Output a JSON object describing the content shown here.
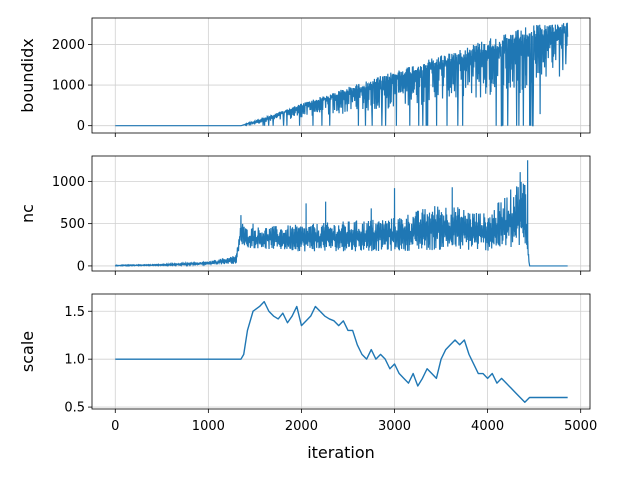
{
  "chart_data": [
    {
      "type": "line",
      "ylabel": "boundidx",
      "xlabel": "",
      "xlim": [
        -250,
        5100
      ],
      "ylim": [
        -180,
        2650
      ],
      "yticks": [
        0,
        1000,
        2000
      ],
      "ytick_labels": [
        "0",
        "1000",
        "2000"
      ],
      "grid": true,
      "series": [
        {
          "color": "#1f77b4",
          "description_points": {
            "x": [
              0,
              1350,
              1600,
              2000,
              2500,
              3000,
              3500,
              4000,
              4500,
              4860
            ],
            "y_upper": [
              0,
              0,
              200,
              550,
              950,
              1350,
              1750,
              2150,
              2500,
              2550
            ],
            "y_lower": [
              0,
              0,
              0,
              0,
              0,
              0,
              0,
              0,
              0,
              1600
            ]
          }
        }
      ]
    },
    {
      "type": "line",
      "ylabel": "nc",
      "xlabel": "",
      "xlim": [
        -250,
        5100
      ],
      "ylim": [
        -60,
        1300
      ],
      "yticks": [
        0,
        500,
        1000
      ],
      "ytick_labels": [
        "0",
        "500",
        "1000"
      ],
      "grid": true,
      "series": [
        {
          "color": "#1f77b4",
          "description_points": {
            "x": [
              0,
              500,
              1000,
              1300,
              1350,
              1400,
              2000,
              2500,
              3000,
              3500,
              4000,
              4400,
              4450,
              4860
            ],
            "y_upper": [
              10,
              20,
              60,
              150,
              600,
              500,
              550,
              600,
              650,
              850,
              700,
              1250,
              0,
              0
            ],
            "y_lower": [
              0,
              5,
              10,
              20,
              250,
              200,
              150,
              150,
              150,
              150,
              150,
              150,
              0,
              0
            ]
          },
          "spikes": [
            {
              "x": 1350,
              "y": 600
            },
            {
              "x": 1480,
              "y": 500
            },
            {
              "x": 2050,
              "y": 740
            },
            {
              "x": 2260,
              "y": 760
            },
            {
              "x": 2750,
              "y": 680
            },
            {
              "x": 3000,
              "y": 920
            },
            {
              "x": 3620,
              "y": 930
            },
            {
              "x": 4350,
              "y": 1110
            },
            {
              "x": 4430,
              "y": 1250
            }
          ]
        }
      ]
    },
    {
      "type": "line",
      "ylabel": "scale",
      "xlabel": "iteration",
      "xlim": [
        -250,
        5100
      ],
      "ylim": [
        0.48,
        1.68
      ],
      "yticks": [
        0.5,
        1.0,
        1.5
      ],
      "ytick_labels": [
        "0.5",
        "1.0",
        "1.5"
      ],
      "xticks": [
        0,
        1000,
        2000,
        3000,
        4000,
        5000
      ],
      "xtick_labels": [
        "0",
        "1000",
        "2000",
        "3000",
        "4000",
        "5000"
      ],
      "grid": true,
      "series": [
        {
          "color": "#1f77b4",
          "x": [
            0,
            1000,
            1350,
            1380,
            1420,
            1480,
            1550,
            1600,
            1650,
            1700,
            1750,
            1800,
            1850,
            1900,
            1950,
            2000,
            2050,
            2100,
            2150,
            2200,
            2250,
            2300,
            2350,
            2400,
            2450,
            2500,
            2550,
            2600,
            2650,
            2700,
            2750,
            2800,
            2850,
            2900,
            2950,
            3000,
            3050,
            3100,
            3150,
            3200,
            3250,
            3300,
            3350,
            3400,
            3450,
            3500,
            3550,
            3600,
            3650,
            3700,
            3750,
            3800,
            3850,
            3900,
            3950,
            4000,
            4050,
            4100,
            4150,
            4200,
            4250,
            4300,
            4350,
            4400,
            4450,
            4500,
            4860
          ],
          "y": [
            1.0,
            1.0,
            1.0,
            1.05,
            1.3,
            1.5,
            1.55,
            1.6,
            1.5,
            1.45,
            1.42,
            1.48,
            1.38,
            1.45,
            1.55,
            1.35,
            1.4,
            1.45,
            1.55,
            1.5,
            1.45,
            1.42,
            1.4,
            1.35,
            1.4,
            1.3,
            1.3,
            1.15,
            1.05,
            1.0,
            1.1,
            1.0,
            1.05,
            1.0,
            0.9,
            0.95,
            0.85,
            0.8,
            0.75,
            0.85,
            0.72,
            0.8,
            0.9,
            0.85,
            0.8,
            1.0,
            1.1,
            1.15,
            1.2,
            1.15,
            1.2,
            1.05,
            0.95,
            0.85,
            0.85,
            0.8,
            0.85,
            0.75,
            0.8,
            0.75,
            0.7,
            0.65,
            0.6,
            0.55,
            0.6,
            0.6,
            0.6
          ]
        }
      ]
    }
  ]
}
